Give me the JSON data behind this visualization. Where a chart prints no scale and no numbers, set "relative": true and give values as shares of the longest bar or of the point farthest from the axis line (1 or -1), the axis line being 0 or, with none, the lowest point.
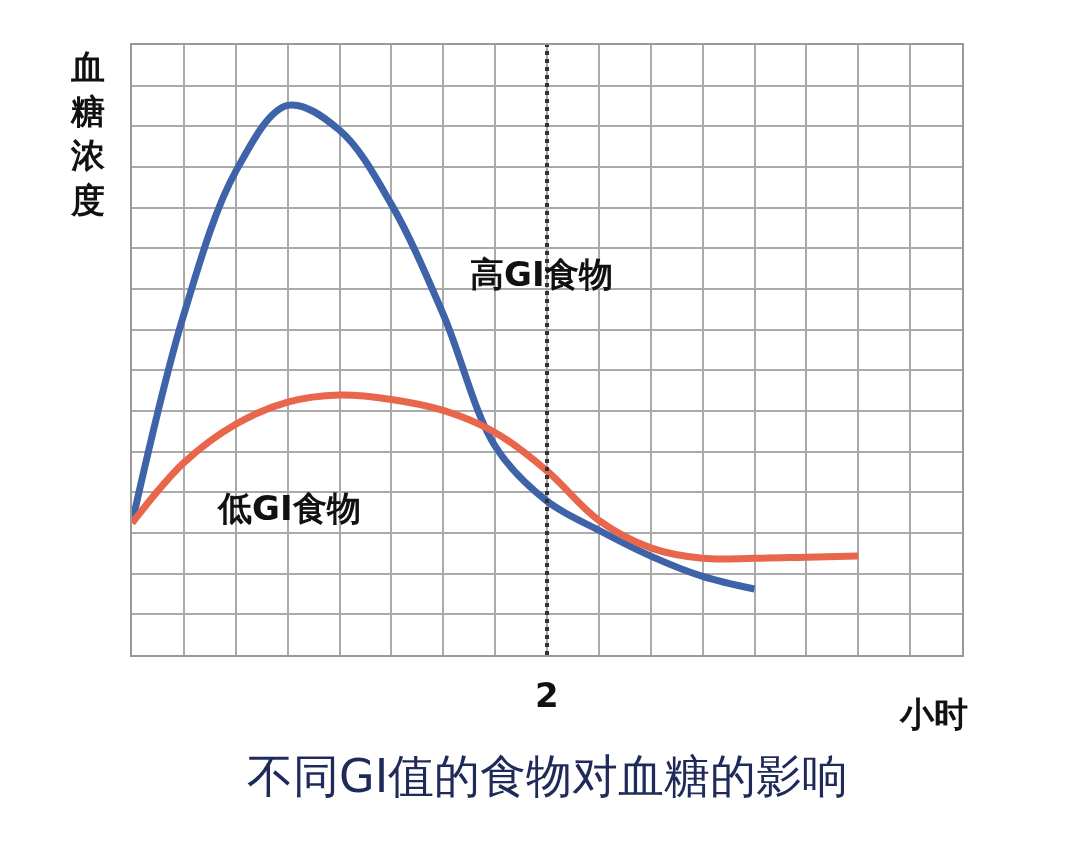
{
  "chart_data": {
    "type": "line",
    "title": "不同GI值的食物对血糖的影响",
    "xlabel": "小时",
    "ylabel": "血糖浓度",
    "relative": true,
    "grid": true,
    "legend": false,
    "marker": "none",
    "line_style": "solid",
    "annotations": [
      "2"
    ],
    "categories": [
      null,
      null,
      null,
      null,
      null,
      null,
      null,
      null,
      null,
      null,
      null,
      null,
      null,
      null,
      null,
      null,
      null
    ],
    "series": [
      {
        "name": "高GI食物",
        "color": "#3f63a8",
        "values": [
          0.24,
          0.62,
          0.88,
          1.0,
          0.955,
          0.82,
          0.62,
          0.38,
          0.28,
          0.227,
          0.18,
          0.143,
          0.12,
          null,
          null,
          null,
          null
        ]
      },
      {
        "name": "低GI食物",
        "color": "#e8664c",
        "values": [
          0.24,
          0.35,
          0.42,
          0.46,
          0.473,
          0.465,
          0.445,
          0.405,
          0.335,
          0.245,
          0.195,
          0.176,
          0.176,
          0.178,
          0.18,
          null,
          null
        ]
      }
    ]
  }
}
